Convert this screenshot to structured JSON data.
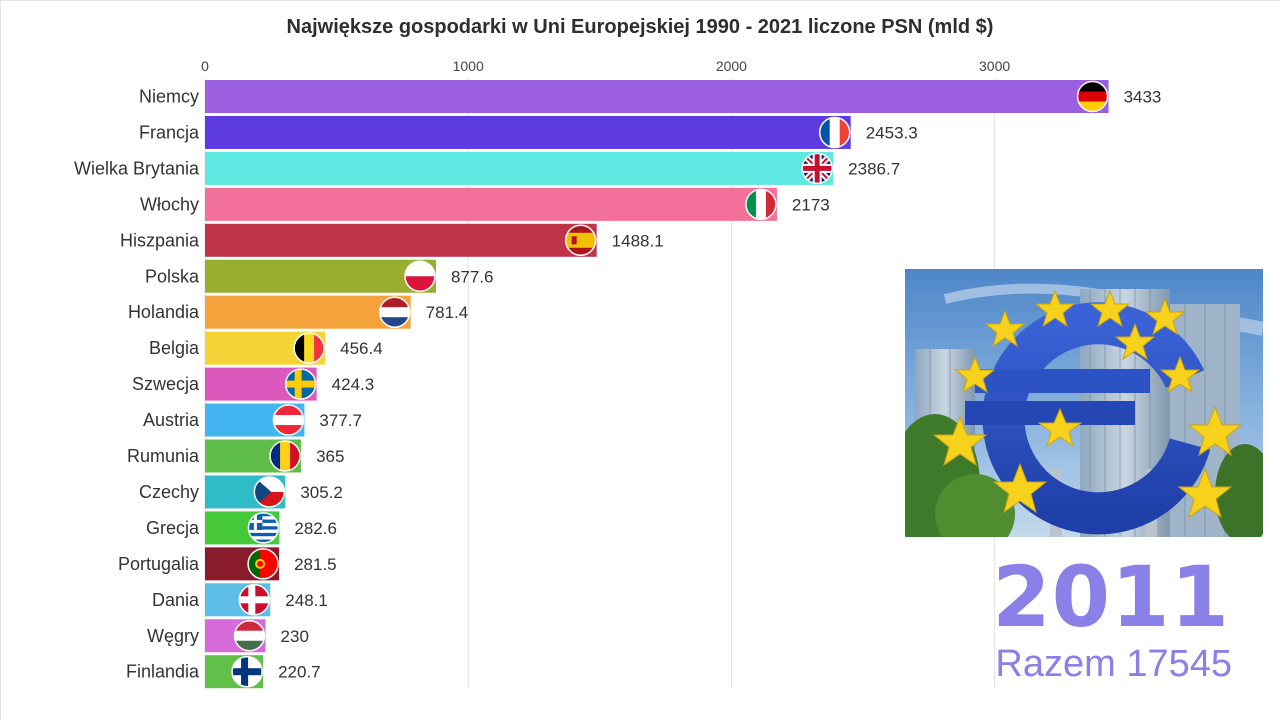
{
  "chart_data": {
    "type": "bar",
    "orientation": "horizontal",
    "title": "Największe gospodarki w Uni Europejskiej 1990 - 2021 liczone PSN (mld $)",
    "xlim": [
      0,
      3500
    ],
    "xticks": [
      0,
      1000,
      2000,
      3000
    ],
    "xtick_labels": [
      "0",
      "1000",
      "2000",
      "3000"
    ],
    "grid": true,
    "categories": [
      "Niemcy",
      "Francja",
      "Wielka Brytania",
      "Włochy",
      "Hiszpania",
      "Polska",
      "Holandia",
      "Belgia",
      "Szwecja",
      "Austria",
      "Rumunia",
      "Czechy",
      "Grecja",
      "Portugalia",
      "Dania",
      "Węgry",
      "Finlandia"
    ],
    "values": [
      3433,
      2453.3,
      2386.7,
      2173,
      1488.1,
      877.6,
      781.4,
      456.4,
      424.3,
      377.7,
      365,
      305.2,
      282.6,
      281.5,
      248.1,
      230,
      220.7
    ],
    "value_labels": [
      "3433",
      "2453.3",
      "2386.7",
      "2173",
      "1488.1",
      "877.6",
      "781.4",
      "456.4",
      "424.3",
      "377.7",
      "365",
      "305.2",
      "282.6",
      "281.5",
      "248.1",
      "230",
      "220.7"
    ],
    "colors": [
      "#9b5fe0",
      "#5d3be0",
      "#5ee8e2",
      "#f3709a",
      "#c0344a",
      "#9bad2e",
      "#f4a23c",
      "#f5d437",
      "#dc58bd",
      "#43b5f3",
      "#5fbe4a",
      "#2fbcc9",
      "#45c939",
      "#8a1b2c",
      "#5ebfe6",
      "#d66ad8",
      "#62bf4a"
    ],
    "flags": [
      "germany-flag",
      "france-flag",
      "uk-flag",
      "italy-flag",
      "spain-flag",
      "poland-flag",
      "netherlands-flag",
      "belgium-flag",
      "sweden-flag",
      "austria-flag",
      "romania-flag",
      "czech-flag",
      "greece-flag",
      "portugal-flag",
      "denmark-flag",
      "hungary-flag",
      "finland-flag"
    ],
    "year": "2011",
    "total_label": "Razem 17545"
  },
  "photo": {
    "subject": "euro-sign-sculpture-photo"
  }
}
